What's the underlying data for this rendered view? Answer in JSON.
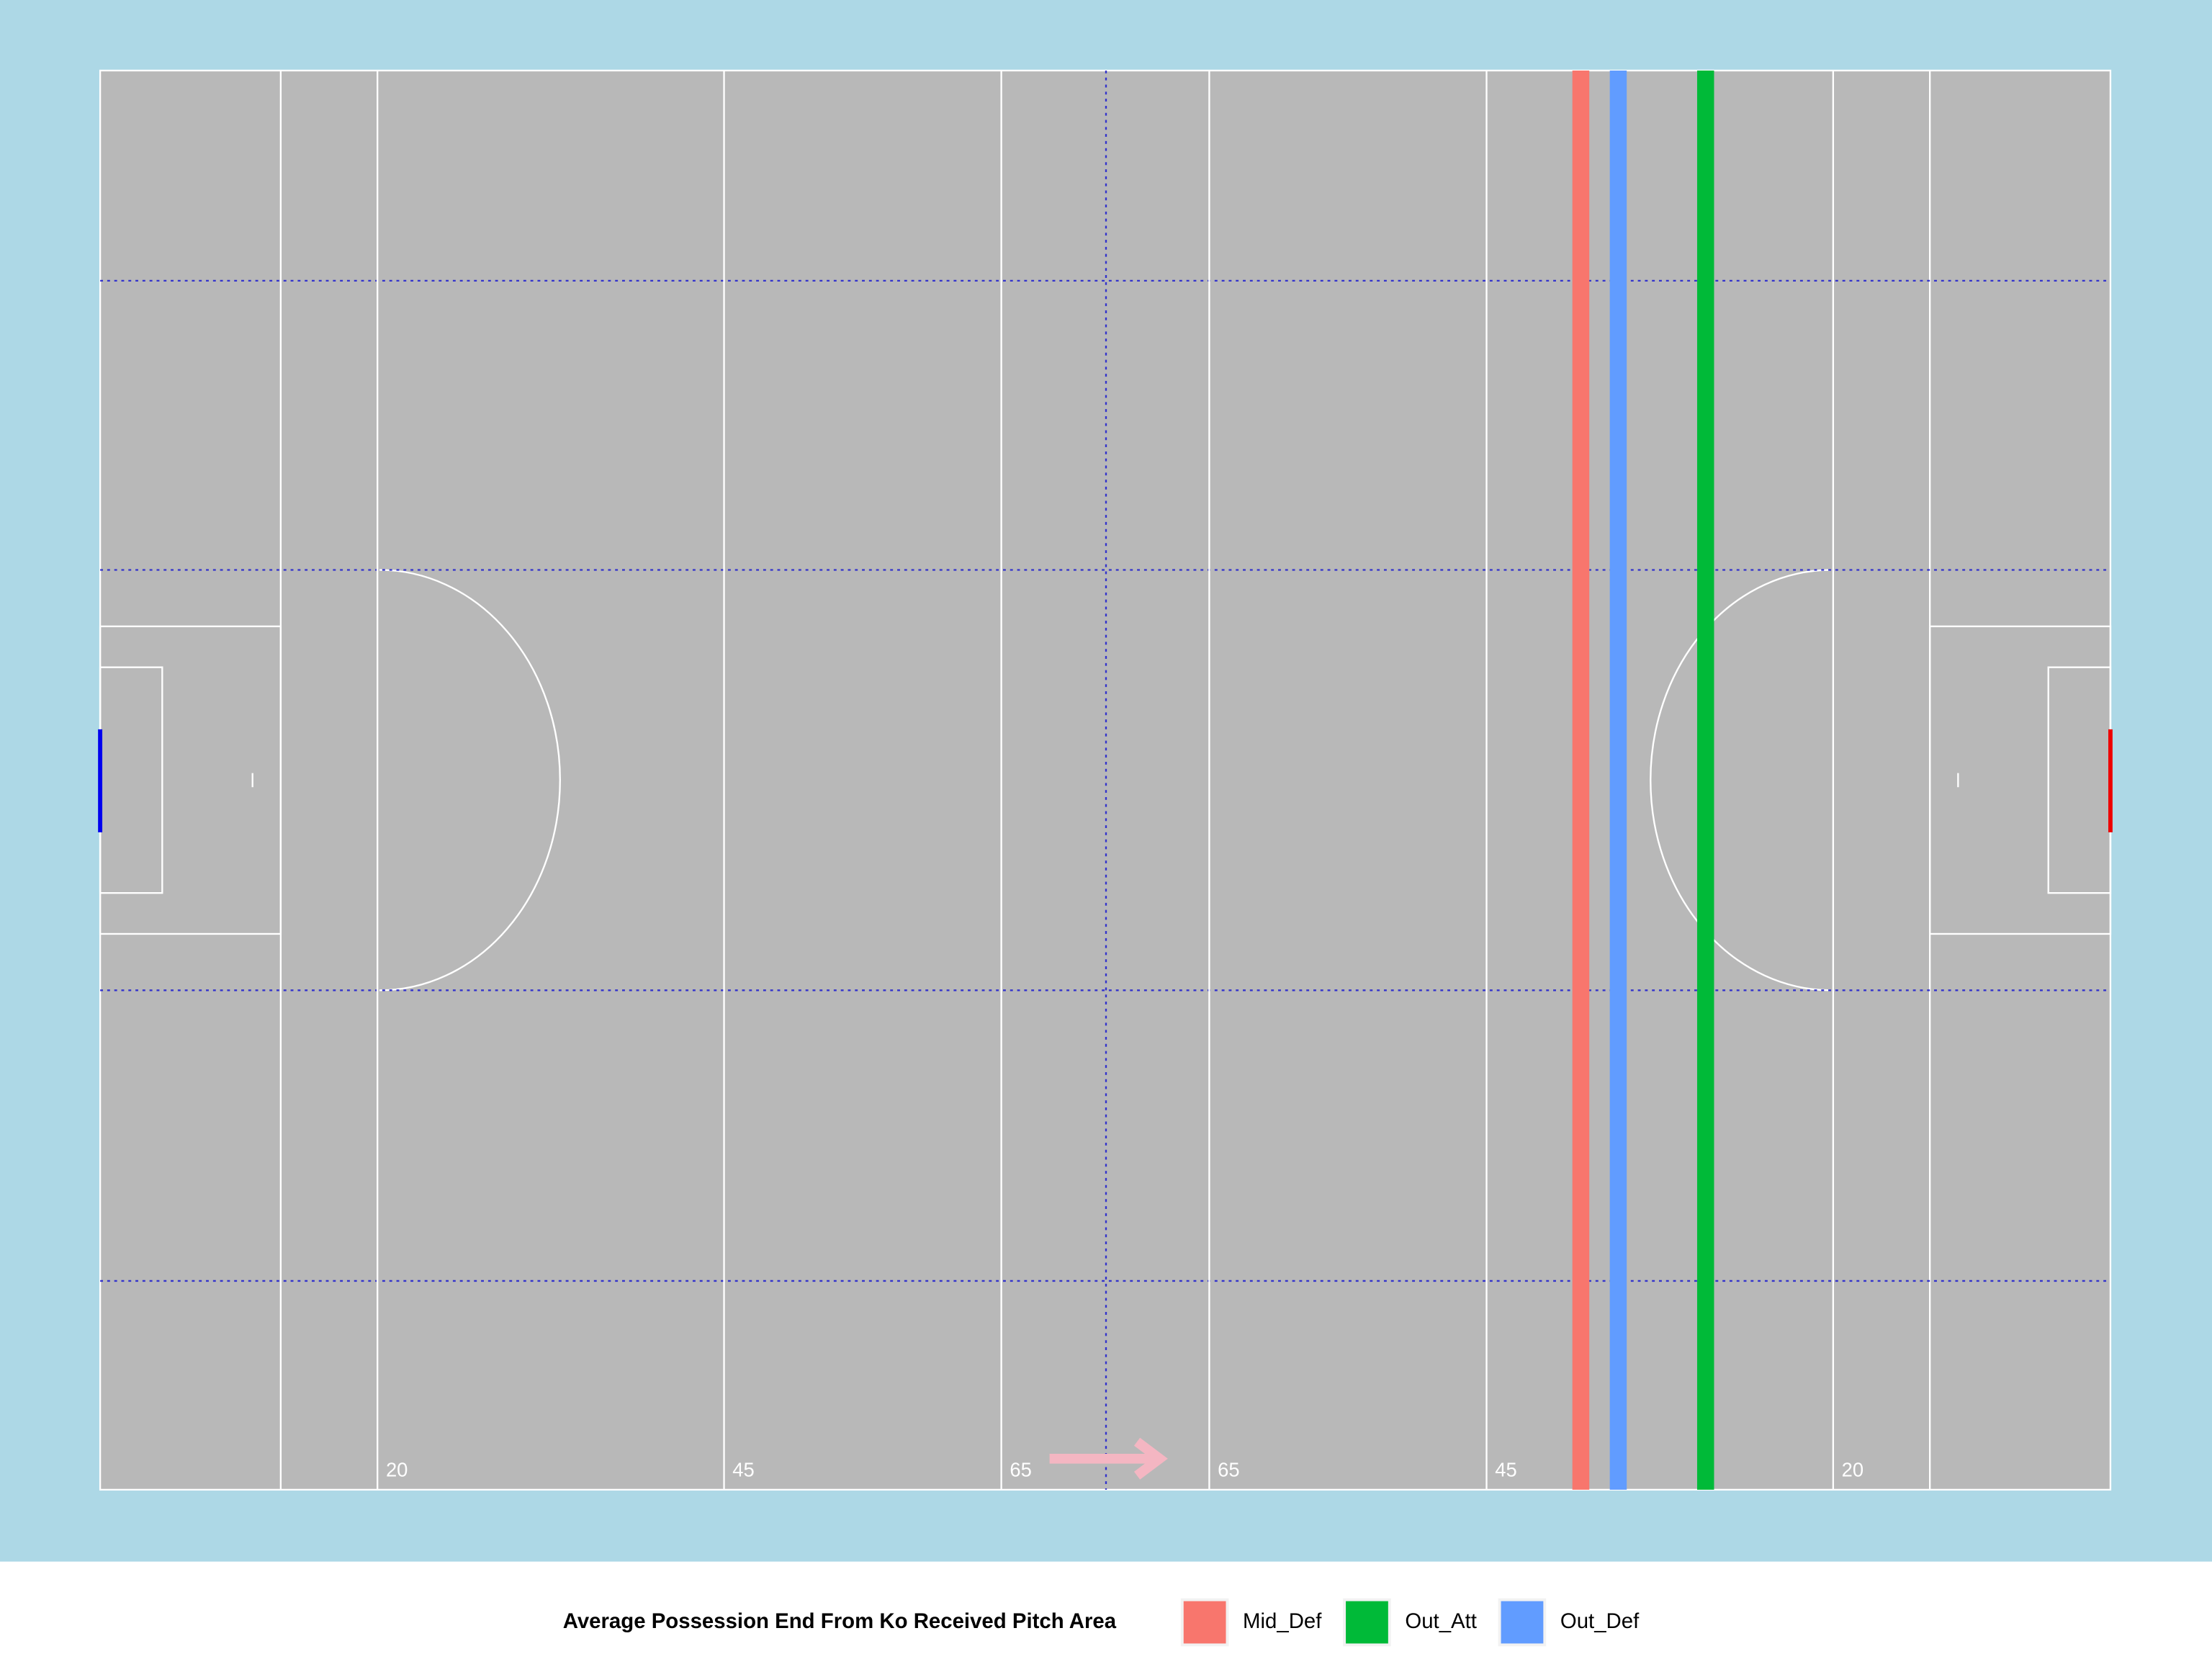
{
  "chart_data": {
    "type": "pitch-lines",
    "legend_title": "Average Possession End From Ko Received Pitch Area",
    "series": [
      {
        "name": "Mid_Def",
        "color": "#F8766D",
        "values": [
          106.8
        ]
      },
      {
        "name": "Out_Att",
        "color": "#00BA38",
        "values": [
          115.8
        ]
      },
      {
        "name": "Out_Def",
        "color": "#619CFF",
        "values": [
          109.5
        ]
      }
    ],
    "xlim": [
      0,
      145
    ],
    "xticks": [
      20,
      45,
      65,
      {
        "value": 80,
        "label": "65"
      },
      {
        "value": 100,
        "label": "45"
      },
      {
        "value": 125,
        "label": "20"
      }
    ],
    "legend": "bottom"
  }
}
